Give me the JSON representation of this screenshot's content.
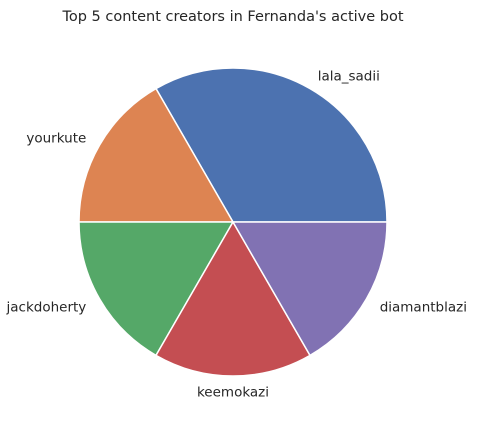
{
  "chart_data": {
    "type": "pie",
    "title": "Top 5 content creators in Fernanda's active bot",
    "categories": [
      "lala_sadii",
      "yourkute",
      "jackdoherty",
      "keemokazi",
      "diamantblazi"
    ],
    "values": [
      2,
      1,
      1,
      1,
      1
    ],
    "colors": [
      "#4c72b0",
      "#dd8452",
      "#55a868",
      "#c44e52",
      "#8172b3"
    ],
    "start_angle_deg": 0,
    "direction": "counterclockwise",
    "legend": "none"
  }
}
